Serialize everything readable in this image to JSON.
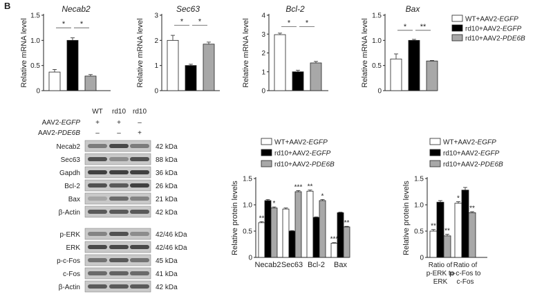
{
  "figure": {
    "panel_label": "B",
    "legend": [
      {
        "name": "WT+AAV2-",
        "italic": "EGFP",
        "fill": "#ffffff"
      },
      {
        "name": "rd10+AAV2-",
        "italic": "EGFP",
        "fill": "#000000"
      },
      {
        "name": "rd10+AAV2-",
        "italic": "PDE6B",
        "fill": "#a8a8a8"
      }
    ],
    "blot": {
      "lanes": [
        "WT",
        "rd10",
        "rd10"
      ],
      "treatments": [
        {
          "name": "AAV2-",
          "italic": "EGFP",
          "signs": [
            "+",
            "+",
            "–"
          ]
        },
        {
          "name": "AAV2-",
          "italic": "PDE6B",
          "signs": [
            "–",
            "–",
            "+"
          ]
        }
      ],
      "group1": [
        {
          "protein": "Necab2",
          "size": "42 kDa",
          "intensity": [
            0.45,
            0.75,
            0.45
          ]
        },
        {
          "protein": "Sec63",
          "size": "88 kDa",
          "intensity": [
            0.7,
            0.35,
            0.7
          ]
        },
        {
          "protein": "Gapdh",
          "size": "36 kDa",
          "intensity": [
            0.8,
            0.8,
            0.8
          ]
        },
        {
          "protein": "Bcl-2",
          "size": "26 kDa",
          "intensity": [
            0.7,
            0.65,
            0.8
          ]
        },
        {
          "protein": "Bax",
          "size": "21 kDa",
          "intensity": [
            0.2,
            0.55,
            0.4
          ]
        },
        {
          "protein": "β-Actin",
          "size": "42 kDa",
          "intensity": [
            0.65,
            0.65,
            0.65
          ]
        }
      ],
      "group2": [
        {
          "protein": "p-ERK",
          "size": "42/46 kDa",
          "intensity": [
            0.4,
            0.7,
            0.35
          ]
        },
        {
          "protein": "ERK",
          "size": "42/46 kDa",
          "intensity": [
            0.75,
            0.75,
            0.75
          ]
        },
        {
          "protein": "p-c-Fos",
          "size": "45 kDa",
          "intensity": [
            0.5,
            0.65,
            0.5
          ]
        },
        {
          "protein": "c-Fos",
          "size": "41 kDa",
          "intensity": [
            0.55,
            0.6,
            0.55
          ]
        },
        {
          "protein": "β-Actin",
          "size": "42 kDa",
          "intensity": [
            0.65,
            0.65,
            0.65
          ]
        }
      ]
    }
  },
  "chart_data": [
    {
      "type": "bar",
      "title": "Necab2",
      "title_italic": true,
      "ylabel": "Relative mRNA level",
      "ylim": [
        0,
        1.5
      ],
      "yticks": [
        0,
        0.5,
        1.0,
        1.5
      ],
      "ytick_labels": [
        "0",
        "0.5",
        "1.0",
        "1.5"
      ],
      "categories": [
        "WT+AAV2-EGFP",
        "rd10+AAV2-EGFP",
        "rd10+AAV2-PDE6B"
      ],
      "values": [
        0.37,
        1.0,
        0.29
      ],
      "errors": [
        0.05,
        0.05,
        0.03
      ],
      "sig": [
        {
          "from": 0,
          "to": 1,
          "label": "*",
          "y": 1.25
        },
        {
          "from": 1,
          "to": 2,
          "label": "*",
          "y": 1.25
        }
      ]
    },
    {
      "type": "bar",
      "title": "Sec63",
      "title_italic": true,
      "ylabel": "Relative mRNA level",
      "ylim": [
        0,
        3
      ],
      "yticks": [
        0,
        1,
        2,
        3
      ],
      "ytick_labels": [
        "0",
        "1",
        "2",
        "3"
      ],
      "categories": [
        "WT+AAV2-EGFP",
        "rd10+AAV2-EGFP",
        "rd10+AAV2-PDE6B"
      ],
      "values": [
        2.0,
        1.0,
        1.85
      ],
      "errors": [
        0.2,
        0.05,
        0.08
      ],
      "sig": [
        {
          "from": 0,
          "to": 1,
          "label": "*",
          "y": 2.6
        },
        {
          "from": 1,
          "to": 2,
          "label": "*",
          "y": 2.6
        }
      ]
    },
    {
      "type": "bar",
      "title": "Bcl-2",
      "title_italic": true,
      "ylabel": "Relative mRNA level",
      "ylim": [
        0,
        4
      ],
      "yticks": [
        0,
        1,
        2,
        3,
        4
      ],
      "ytick_labels": [
        "0",
        "1",
        "2",
        "3",
        "4"
      ],
      "categories": [
        "WT+AAV2-EGFP",
        "rd10+AAV2-EGFP",
        "rd10+AAV2-PDE6B"
      ],
      "values": [
        2.97,
        1.0,
        1.47
      ],
      "errors": [
        0.08,
        0.08,
        0.08
      ],
      "sig": [
        {
          "from": 0,
          "to": 1,
          "label": "*",
          "y": 3.4
        },
        {
          "from": 1,
          "to": 2,
          "label": "*",
          "y": 3.4
        }
      ]
    },
    {
      "type": "bar",
      "title": "Bax",
      "title_italic": true,
      "ylabel": "Relative mRNA level",
      "ylim": [
        0,
        1.5
      ],
      "yticks": [
        0,
        0.5,
        1.0,
        1.5
      ],
      "ytick_labels": [
        "0",
        "0.5",
        "1.0",
        "1.5"
      ],
      "categories": [
        "WT+AAV2-EGFP",
        "rd10+AAV2-EGFP",
        "rd10+AAV2-PDE6B"
      ],
      "values": [
        0.63,
        1.0,
        0.59
      ],
      "errors": [
        0.1,
        0.02,
        0.01
      ],
      "sig": [
        {
          "from": 0,
          "to": 1,
          "label": "*",
          "y": 1.2
        },
        {
          "from": 1,
          "to": 2,
          "label": "**",
          "y": 1.2
        }
      ]
    },
    {
      "type": "grouped-bar",
      "title": "",
      "ylabel": "Relative protein levels",
      "ylim": [
        0,
        1.5
      ],
      "yticks": [
        0,
        0.5,
        1.0,
        1.5
      ],
      "ytick_labels": [
        "0",
        "0.5",
        "1.0",
        "1.5"
      ],
      "categories": [
        "Necab2",
        "Sec63",
        "Bcl-2",
        "Bax"
      ],
      "series": [
        {
          "name": "WT+AAV2-EGFP",
          "values": [
            0.66,
            0.92,
            1.26,
            0.27
          ],
          "errors": [
            0.02,
            0.02,
            0.02,
            0.01
          ],
          "stars": [
            "**",
            "",
            "**",
            "***"
          ]
        },
        {
          "name": "rd10+AAV2-EGFP",
          "values": [
            1.08,
            0.5,
            0.76,
            0.85
          ],
          "errors": [
            0.02,
            0.01,
            0.01,
            0.01
          ],
          "stars": [
            "",
            "",
            "",
            ""
          ]
        },
        {
          "name": "rd10+AAV2-PDE6B",
          "values": [
            0.94,
            1.25,
            1.08,
            0.58
          ],
          "errors": [
            0.02,
            0.02,
            0.02,
            0.01
          ],
          "stars": [
            "*",
            "***",
            "*",
            "**"
          ]
        }
      ]
    },
    {
      "type": "grouped-bar",
      "title": "",
      "ylabel": "Relative protein levels",
      "ylim": [
        0,
        1.5
      ],
      "yticks": [
        0,
        0.5,
        1.0,
        1.5
      ],
      "ytick_labels": [
        "0",
        "0.5",
        "1.0",
        "1.5"
      ],
      "categories": [
        "Ratio of p-ERK to ERK",
        "Ratio of p-c-Fos to c-Fos"
      ],
      "category_lines": [
        [
          "Ratio of",
          "p-ERK to",
          "ERK"
        ],
        [
          "Ratio of",
          "p-c-Fos to",
          "c-Fos"
        ]
      ],
      "series": [
        {
          "name": "WT+AAV2-EGFP",
          "values": [
            0.5,
            1.03
          ],
          "errors": [
            0.03,
            0.03
          ],
          "stars": [
            "**",
            "*"
          ]
        },
        {
          "name": "rd10+AAV2-EGFP",
          "values": [
            1.05,
            1.28
          ],
          "errors": [
            0.03,
            0.05
          ],
          "stars": [
            "",
            ""
          ]
        },
        {
          "name": "rd10+AAV2-PDE6B",
          "values": [
            0.41,
            0.85
          ],
          "errors": [
            0.03,
            0.02
          ],
          "stars": [
            "**",
            "**"
          ]
        }
      ]
    }
  ]
}
